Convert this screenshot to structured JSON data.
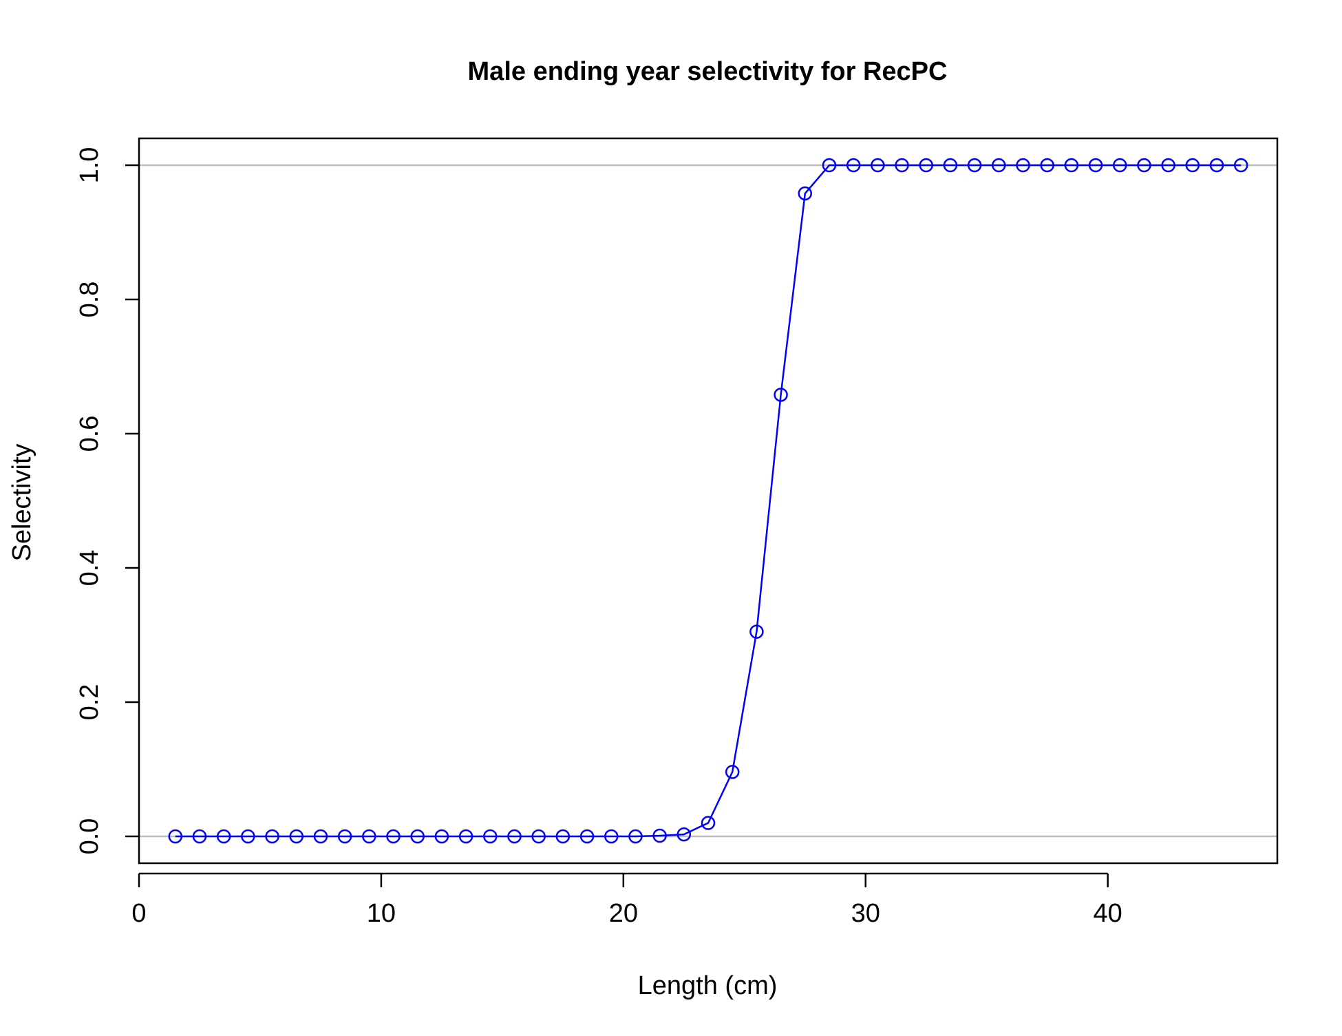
{
  "chart_data": {
    "type": "line",
    "title": "Male ending year selectivity for RecPC",
    "xlabel": "Length (cm)",
    "ylabel": "Selectivity",
    "xlim": [
      0,
      47
    ],
    "ylim": [
      -0.04,
      1.04
    ],
    "x_ticks": [
      0,
      10,
      20,
      30,
      40
    ],
    "x_tick_labels": [
      "0",
      "10",
      "20",
      "30",
      "40"
    ],
    "y_ticks": [
      0,
      0.2,
      0.4,
      0.6,
      0.8,
      1.0
    ],
    "y_tick_labels": [
      "0.0",
      "0.2",
      "0.4",
      "0.6",
      "0.8",
      "1.0"
    ],
    "reference_lines": [
      0,
      1
    ],
    "reference_line_color": "#bebebe",
    "series_color": "#0000ff",
    "grid": false,
    "series": [
      {
        "marker": "open-circle",
        "x": [
          1.5,
          2.5,
          3.5,
          4.5,
          5.5,
          6.5,
          7.5,
          8.5,
          9.5,
          10.5,
          11.5,
          12.5,
          13.5,
          14.5,
          15.5,
          16.5,
          17.5,
          18.5,
          19.5,
          20.5,
          21.5,
          22.5,
          23.5,
          24.5,
          25.5,
          26.5,
          27.5,
          28.5,
          29.5,
          30.5,
          31.5,
          32.5,
          33.5,
          34.5,
          35.5,
          36.5,
          37.5,
          38.5,
          39.5,
          40.5,
          41.5,
          42.5,
          43.5,
          44.5,
          45.5
        ],
        "y": [
          0,
          0,
          0,
          0,
          0,
          0,
          0,
          0,
          0,
          0,
          0,
          0,
          0,
          0,
          0,
          0,
          0,
          0,
          0,
          0,
          0.001,
          0.003,
          0.02,
          0.096,
          0.305,
          0.658,
          0.958,
          1,
          1,
          1,
          1,
          1,
          1,
          1,
          1,
          1,
          1,
          1,
          1,
          1,
          1,
          1,
          1,
          1,
          1
        ]
      }
    ]
  }
}
